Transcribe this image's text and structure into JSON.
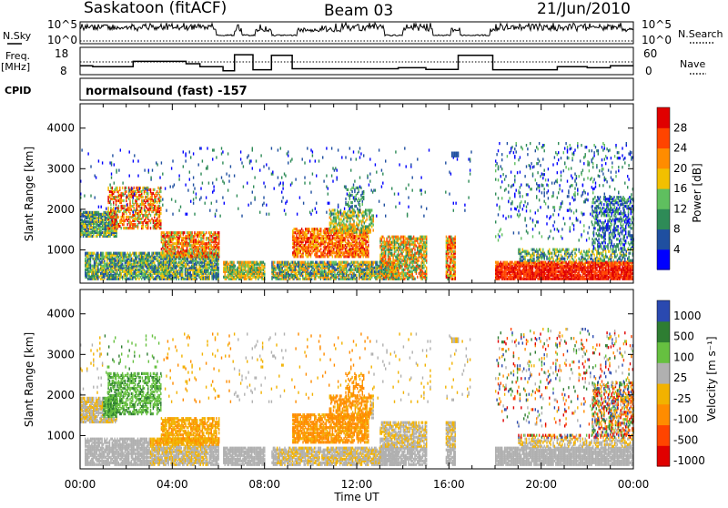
{
  "header": {
    "station": "Saskatoon (fitACF)",
    "beam": "Beam 03",
    "date": "21/Jun/2010"
  },
  "left_labels": {
    "nsky": "N.Sky",
    "freq": "Freq.",
    "freq_unit": "[MHz]",
    "cpid": "CPID"
  },
  "right_labels": {
    "nsearch": "N.Search",
    "nave": "Nave"
  },
  "cpid_text": "normalsound (fast) -157",
  "colors": {
    "power": [
      "#0000ff",
      "#1f4fa0",
      "#2e8b57",
      "#5fbf5f",
      "#f2c000",
      "#ff8c00",
      "#ff4400",
      "#e00000"
    ],
    "velocity": [
      "#2a49b0",
      "#2e7d32",
      "#66c040",
      "#b0b0b0",
      "#f2b200",
      "#ff8c00",
      "#ff4400",
      "#e00000"
    ]
  },
  "chart_data": [
    {
      "type": "line",
      "name": "nsky-nsearch",
      "left_axis": {
        "ticks": [
          "10^5",
          "10^0"
        ]
      },
      "right_axis": {
        "ticks": [
          "10^5",
          "10^0"
        ]
      },
      "xlim": [
        0,
        24
      ]
    },
    {
      "type": "line",
      "name": "frequency-nave",
      "left_axis": {
        "ticks": [
          18,
          8
        ],
        "ylim": [
          8,
          18
        ]
      },
      "right_axis": {
        "ticks": [
          60,
          0
        ],
        "ylim": [
          0,
          60
        ]
      },
      "freq_steps": [
        {
          "t0": 0.0,
          "t1": 0.55,
          "f": 12.0
        },
        {
          "t0": 0.55,
          "t1": 2.3,
          "f": 11.5
        },
        {
          "t0": 2.3,
          "t1": 4.6,
          "f": 14.2
        },
        {
          "t0": 4.6,
          "t1": 5.2,
          "f": 13.0
        },
        {
          "t0": 5.2,
          "t1": 6.2,
          "f": 11.5
        },
        {
          "t0": 6.2,
          "t1": 6.7,
          "f": 9.5
        },
        {
          "t0": 6.7,
          "t1": 7.5,
          "f": 17.5
        },
        {
          "t0": 7.5,
          "t1": 8.3,
          "f": 10.0
        },
        {
          "t0": 8.3,
          "t1": 9.2,
          "f": 17.2
        },
        {
          "t0": 9.2,
          "t1": 13.8,
          "f": 10.5
        },
        {
          "t0": 13.8,
          "t1": 15.0,
          "f": 11.0
        },
        {
          "t0": 15.0,
          "t1": 16.4,
          "f": 10.2
        },
        {
          "t0": 16.4,
          "t1": 17.9,
          "f": 17.2
        },
        {
          "t0": 17.9,
          "t1": 20.7,
          "f": 10.0
        },
        {
          "t0": 20.7,
          "t1": 22.0,
          "f": 11.5
        },
        {
          "t0": 22.0,
          "t1": 23.0,
          "f": 11.0
        },
        {
          "t0": 23.0,
          "t1": 24.0,
          "f": 12.0
        }
      ],
      "nave_dotted": 29,
      "xlim": [
        0,
        24
      ]
    },
    {
      "type": "heatmap",
      "name": "power",
      "ylabel": "Slant Range [km]",
      "ylim": [
        180,
        4600
      ],
      "yticks": [
        1000,
        2000,
        3000,
        4000
      ],
      "xlim": [
        0,
        24
      ],
      "colorbar": {
        "label": "Power [dB]",
        "ticks": [
          4,
          8,
          12,
          16,
          20,
          24,
          28
        ]
      }
    },
    {
      "type": "heatmap",
      "name": "velocity",
      "ylabel": "Slant Range [km]",
      "xlabel": "Time UT",
      "ylim": [
        180,
        4600
      ],
      "yticks": [
        1000,
        2000,
        3000,
        4000
      ],
      "xlim": [
        0,
        24
      ],
      "xticks": [
        "00:00",
        "04:00",
        "08:00",
        "12:00",
        "16:00",
        "20:00",
        "00:00"
      ],
      "colorbar": {
        "label": "Velocity [m s⁻¹]",
        "ticks": [
          1000,
          500,
          100,
          25,
          -25,
          -100,
          -500,
          -1000
        ]
      }
    }
  ]
}
